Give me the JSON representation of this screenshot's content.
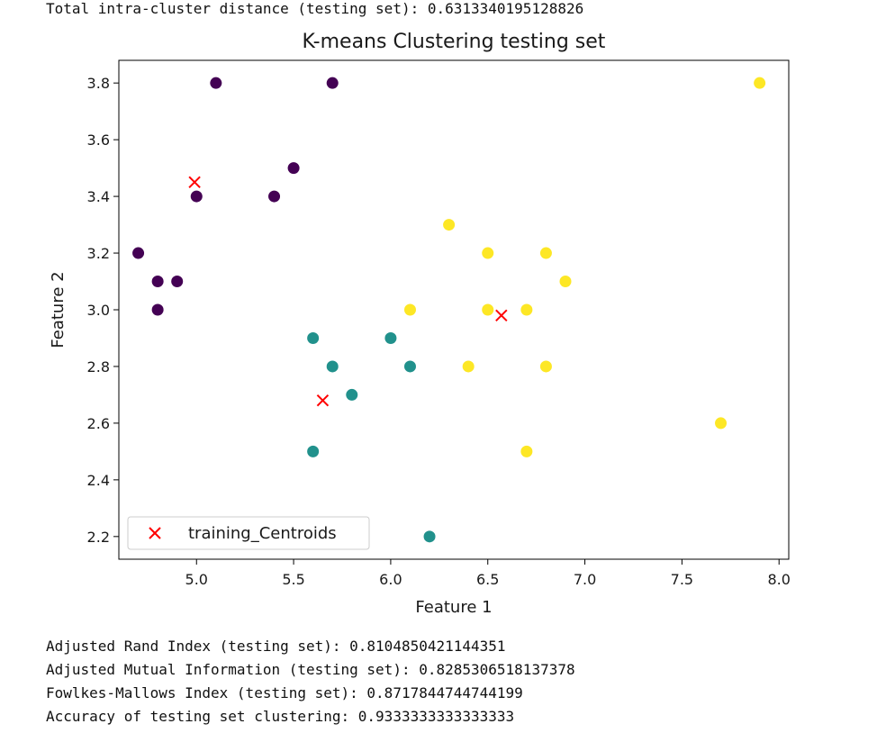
{
  "output": {
    "header_line": "Total intra-cluster distance (testing set): 0.6313340195128826",
    "lines": [
      "Adjusted Rand Index (testing set): 0.8104850421144351",
      "Adjusted Mutual Information (testing set): 0.8285306518137378",
      "Fowlkes-Mallows Index (testing set): 0.8717844744744199",
      "Accuracy of testing set clustering: 0.9333333333333333"
    ]
  },
  "chart_data": {
    "type": "scatter",
    "title": "K-means Clustering testing set",
    "xlabel": "Feature 1",
    "ylabel": "Feature 2",
    "xlim": [
      4.6,
      8.05
    ],
    "ylim": [
      2.12,
      3.88
    ],
    "xticks": [
      "5.0",
      "5.5",
      "6.0",
      "6.5",
      "7.0",
      "7.5",
      "8.0"
    ],
    "yticks": [
      "2.2",
      "2.4",
      "2.6",
      "2.8",
      "3.0",
      "3.2",
      "3.4",
      "3.6",
      "3.8"
    ],
    "grid": false,
    "legend_position": "lower-left",
    "series": [
      {
        "color": "#440154",
        "points": [
          [
            5.1,
            3.8
          ],
          [
            5.7,
            3.8
          ],
          [
            5.5,
            3.5
          ],
          [
            5.0,
            3.4
          ],
          [
            5.4,
            3.4
          ],
          [
            4.7,
            3.2
          ],
          [
            4.8,
            3.1
          ],
          [
            4.9,
            3.1
          ],
          [
            4.8,
            3.0
          ]
        ]
      },
      {
        "color": "#21918c",
        "points": [
          [
            5.6,
            2.9
          ],
          [
            6.0,
            2.9
          ],
          [
            5.7,
            2.8
          ],
          [
            6.1,
            2.8
          ],
          [
            5.8,
            2.7
          ],
          [
            5.6,
            2.5
          ],
          [
            6.2,
            2.2
          ]
        ]
      },
      {
        "color": "#fde725",
        "points": [
          [
            7.9,
            3.8
          ],
          [
            6.3,
            3.3
          ],
          [
            6.5,
            3.2
          ],
          [
            6.8,
            3.2
          ],
          [
            6.9,
            3.1
          ],
          [
            6.1,
            3.0
          ],
          [
            6.5,
            3.0
          ],
          [
            6.7,
            3.0
          ],
          [
            6.4,
            2.8
          ],
          [
            6.8,
            2.8
          ],
          [
            7.7,
            2.6
          ],
          [
            6.7,
            2.5
          ]
        ]
      },
      {
        "name": "training_Centroids",
        "marker": "x",
        "color": "#ff0000",
        "points": [
          [
            4.99,
            3.45
          ],
          [
            6.57,
            2.98
          ],
          [
            5.65,
            2.68
          ]
        ]
      }
    ]
  }
}
